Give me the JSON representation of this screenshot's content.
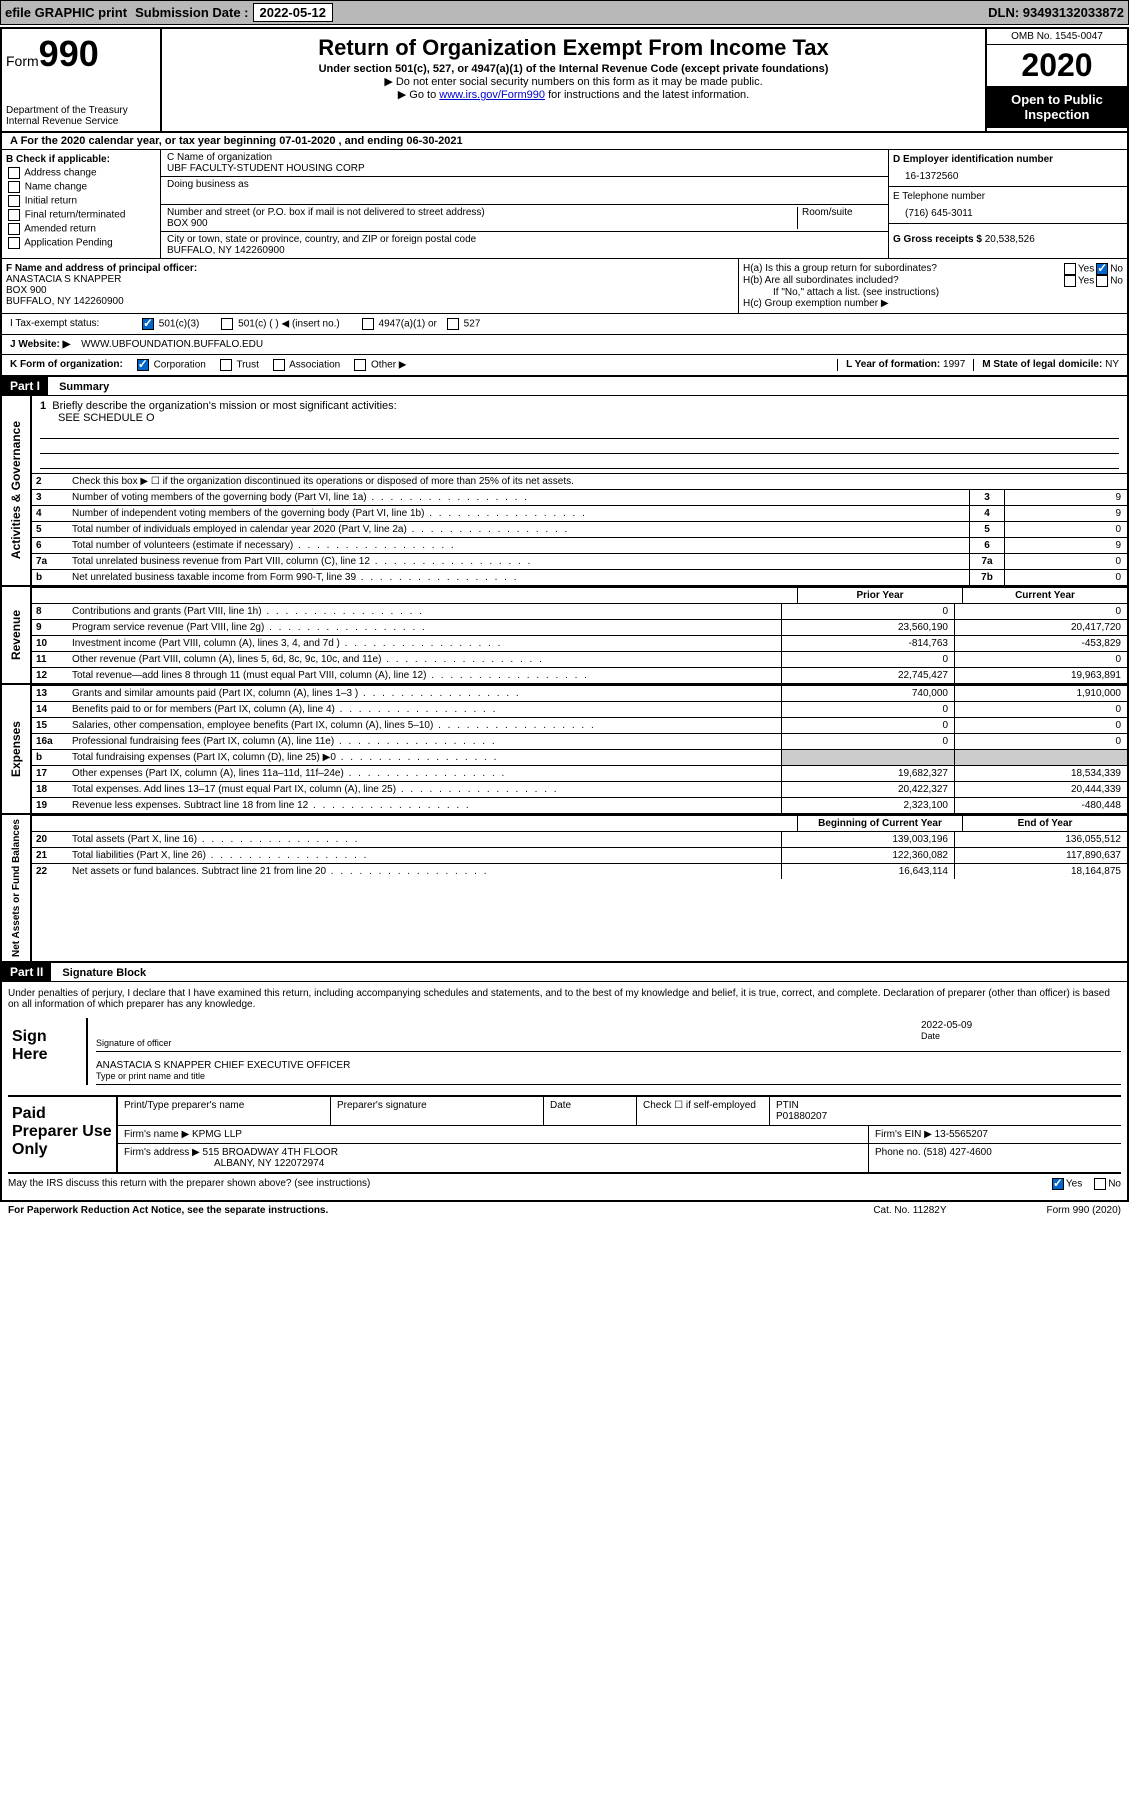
{
  "header": {
    "efile": "efile GRAPHIC print",
    "sub_label": "Submission Date :",
    "sub_date": "2022-05-12",
    "dln": "DLN: 93493132033872"
  },
  "form_id": {
    "form_word": "Form",
    "number": "990",
    "dept1": "Department of the Treasury",
    "dept2": "Internal Revenue Service"
  },
  "title": {
    "main": "Return of Organization Exempt From Income Tax",
    "sub": "Under section 501(c), 527, or 4947(a)(1) of the Internal Revenue Code (except private foundations)",
    "instr1": "▶ Do not enter social security numbers on this form as it may be made public.",
    "instr2_pre": "▶ Go to ",
    "instr2_link": "www.irs.gov/Form990",
    "instr2_post": " for instructions and the latest information."
  },
  "year_box": {
    "omb": "OMB No. 1545-0047",
    "year": "2020",
    "inspect": "Open to Public Inspection"
  },
  "period": "A For the 2020 calendar year, or tax year beginning 07-01-2020    , and ending 06-30-2021",
  "checks": {
    "header": "B Check if applicable:",
    "c1": "Address change",
    "c2": "Name change",
    "c3": "Initial return",
    "c4": "Final return/terminated",
    "c5": "Amended return",
    "c6": "Application Pending"
  },
  "entity": {
    "name_label": "C Name of organization",
    "name": "UBF FACULTY-STUDENT HOUSING CORP",
    "dba_label": "Doing business as",
    "addr_label": "Number and street (or P.O. box if mail is not delivered to street address)",
    "room_label": "Room/suite",
    "addr": "BOX 900",
    "city_label": "City or town, state or province, country, and ZIP or foreign postal code",
    "city": "BUFFALO, NY  142260900"
  },
  "ein_section": {
    "ein_label": "D Employer identification number",
    "ein": "16-1372560",
    "phone_label": "E Telephone number",
    "phone": "(716) 645-3011",
    "gross_label": "G Gross receipts $",
    "gross": "20,538,526"
  },
  "officer": {
    "label": "F Name and address of principal officer:",
    "name": "ANASTACIA S KNAPPER",
    "addr1": "BOX 900",
    "addr2": "BUFFALO, NY  142260900"
  },
  "group_return": {
    "ha_label": "H(a)  Is this a group return for subordinates?",
    "hb_label": "H(b)  Are all subordinates included?",
    "hb_note": "If \"No,\" attach a list. (see instructions)",
    "hc_label": "H(c)  Group exemption number ▶"
  },
  "tax_status": {
    "label": "I    Tax-exempt status:",
    "o1": "501(c)(3)",
    "o2": "501(c) (   ) ◀ (insert no.)",
    "o3": "4947(a)(1) or",
    "o4": "527"
  },
  "website": {
    "label": "J   Website: ▶",
    "value": "WWW.UBFOUNDATION.BUFFALO.EDU"
  },
  "org_form": {
    "label": "K Form of organization:",
    "o1": "Corporation",
    "o2": "Trust",
    "o3": "Association",
    "o4": "Other ▶",
    "year_label": "L Year of formation:",
    "year": "1997",
    "state_label": "M State of legal domicile:",
    "state": "NY"
  },
  "part1": {
    "header": "Part I",
    "title": "Summary"
  },
  "governance": {
    "label": "Activities & Governance",
    "q1": "Briefly describe the organization's mission or most significant activities:",
    "q1_ans": "SEE SCHEDULE O",
    "q2": "Check this box ▶ ☐  if the organization discontinued its operations or disposed of more than 25% of its net assets.",
    "rows": [
      {
        "n": "3",
        "d": "Number of voting members of the governing body (Part VI, line 1a)",
        "bn": "3",
        "v": "9"
      },
      {
        "n": "4",
        "d": "Number of independent voting members of the governing body (Part VI, line 1b)",
        "bn": "4",
        "v": "9"
      },
      {
        "n": "5",
        "d": "Total number of individuals employed in calendar year 2020 (Part V, line 2a)",
        "bn": "5",
        "v": "0"
      },
      {
        "n": "6",
        "d": "Total number of volunteers (estimate if necessary)",
        "bn": "6",
        "v": "9"
      },
      {
        "n": "7a",
        "d": "Total unrelated business revenue from Part VIII, column (C), line 12",
        "bn": "7a",
        "v": "0"
      },
      {
        "n": "b",
        "d": "Net unrelated business taxable income from Form 990-T, line 39",
        "bn": "7b",
        "v": "0"
      }
    ]
  },
  "revenue": {
    "label": "Revenue",
    "header_prior": "Prior Year",
    "header_current": "Current Year",
    "rows": [
      {
        "n": "8",
        "d": "Contributions and grants (Part VIII, line 1h)",
        "p": "0",
        "c": "0"
      },
      {
        "n": "9",
        "d": "Program service revenue (Part VIII, line 2g)",
        "p": "23,560,190",
        "c": "20,417,720"
      },
      {
        "n": "10",
        "d": "Investment income (Part VIII, column (A), lines 3, 4, and 7d )",
        "p": "-814,763",
        "c": "-453,829"
      },
      {
        "n": "11",
        "d": "Other revenue (Part VIII, column (A), lines 5, 6d, 8c, 9c, 10c, and 11e)",
        "p": "0",
        "c": "0"
      },
      {
        "n": "12",
        "d": "Total revenue—add lines 8 through 11 (must equal Part VIII, column (A), line 12)",
        "p": "22,745,427",
        "c": "19,963,891"
      }
    ]
  },
  "expenses": {
    "label": "Expenses",
    "rows": [
      {
        "n": "13",
        "d": "Grants and similar amounts paid (Part IX, column (A), lines 1–3 )",
        "p": "740,000",
        "c": "1,910,000"
      },
      {
        "n": "14",
        "d": "Benefits paid to or for members (Part IX, column (A), line 4)",
        "p": "0",
        "c": "0"
      },
      {
        "n": "15",
        "d": "Salaries, other compensation, employee benefits (Part IX, column (A), lines 5–10)",
        "p": "0",
        "c": "0"
      },
      {
        "n": "16a",
        "d": "Professional fundraising fees (Part IX, column (A), line 11e)",
        "p": "0",
        "c": "0"
      },
      {
        "n": "b",
        "d": "Total fundraising expenses (Part IX, column (D), line 25) ▶0",
        "p": "",
        "c": ""
      },
      {
        "n": "17",
        "d": "Other expenses (Part IX, column (A), lines 11a–11d, 11f–24e)",
        "p": "19,682,327",
        "c": "18,534,339"
      },
      {
        "n": "18",
        "d": "Total expenses. Add lines 13–17 (must equal Part IX, column (A), line 25)",
        "p": "20,422,327",
        "c": "20,444,339"
      },
      {
        "n": "19",
        "d": "Revenue less expenses. Subtract line 18 from line 12",
        "p": "2,323,100",
        "c": "-480,448"
      }
    ]
  },
  "net_assets": {
    "label": "Net Assets or Fund Balances",
    "header_prior": "Beginning of Current Year",
    "header_current": "End of Year",
    "rows": [
      {
        "n": "20",
        "d": "Total assets (Part X, line 16)",
        "p": "139,003,196",
        "c": "136,055,512"
      },
      {
        "n": "21",
        "d": "Total liabilities (Part X, line 26)",
        "p": "122,360,082",
        "c": "117,890,637"
      },
      {
        "n": "22",
        "d": "Net assets or fund balances. Subtract line 21 from line 20",
        "p": "16,643,114",
        "c": "18,164,875"
      }
    ]
  },
  "part2": {
    "header": "Part II",
    "title": "Signature Block",
    "perjury": "Under penalties of perjury, I declare that I have examined this return, including accompanying schedules and statements, and to the best of my knowledge and belief, it is true, correct, and complete. Declaration of preparer (other than officer) is based on all information of which preparer has any knowledge."
  },
  "sign": {
    "label": "Sign Here",
    "sig_label": "Signature of officer",
    "date_label": "Date",
    "date": "2022-05-09",
    "name": "ANASTACIA S KNAPPER  CHIEF EXECUTIVE OFFICER",
    "name_label": "Type or print name and title"
  },
  "preparer": {
    "label": "Paid Preparer Use Only",
    "h1": "Print/Type preparer's name",
    "h2": "Preparer's signature",
    "h3": "Date",
    "h4": "Check ☐ if self-employed",
    "h5_label": "PTIN",
    "h5": "P01880207",
    "firm_label": "Firm's name    ▶",
    "firm": "KPMG LLP",
    "ein_label": "Firm's EIN ▶",
    "ein": "13-5565207",
    "addr_label": "Firm's address ▶",
    "addr1": "515 BROADWAY 4TH FLOOR",
    "addr2": "ALBANY, NY  122072974",
    "phone_label": "Phone no.",
    "phone": "(518) 427-4600"
  },
  "discuss": "May the IRS discuss this return with the preparer shown above? (see instructions)",
  "footer": {
    "left": "For Paperwork Reduction Act Notice, see the separate instructions.",
    "mid": "Cat. No. 11282Y",
    "right": "Form 990 (2020)"
  }
}
